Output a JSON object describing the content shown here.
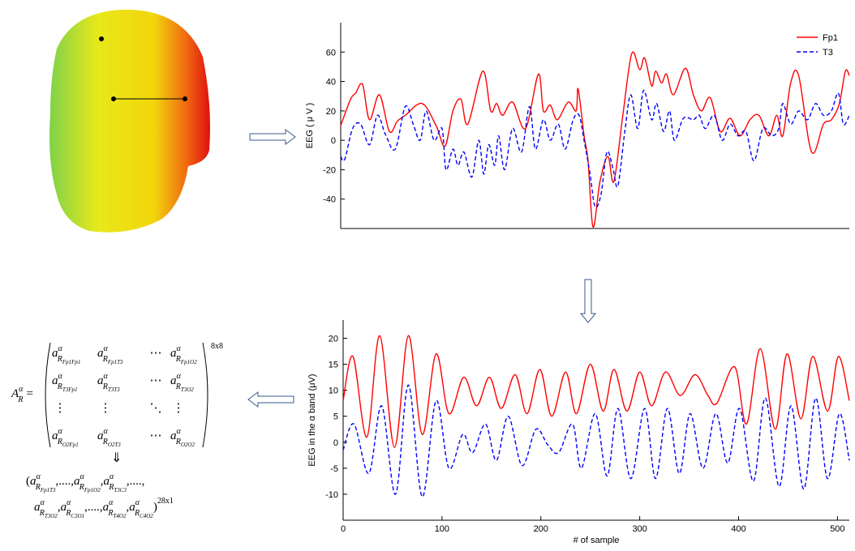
{
  "chart_data": [
    {
      "type": "line",
      "y_label": "EEG ( μ V )",
      "xlim": [
        0,
        512
      ],
      "ylim": [
        -60,
        80
      ],
      "yticks": [
        -40,
        -20,
        0,
        20,
        40,
        60
      ],
      "legend": "upper right",
      "series": [
        {
          "name": "Fp1",
          "color": "#ff0000",
          "style": "solid",
          "x": [
            0,
            10,
            15,
            22,
            29,
            39,
            49,
            57,
            65,
            82,
            96,
            105,
            113,
            121,
            128,
            143,
            151,
            157,
            163,
            173,
            186,
            199,
            204,
            211,
            218,
            229,
            237,
            239,
            245,
            249,
            254,
            261,
            269,
            275,
            284,
            293,
            301,
            306,
            313,
            317,
            323,
            328,
            335,
            347,
            355,
            363,
            372,
            382,
            392,
            402,
            412,
            421,
            431,
            439,
            445,
            453,
            461,
            474,
            486,
            494,
            502,
            508,
            512
          ],
          "values": [
            10,
            28,
            32,
            38,
            14,
            31,
            6,
            13,
            17,
            25,
            10,
            -4,
            20,
            28,
            11,
            47,
            20,
            25,
            17,
            26,
            8,
            45,
            20,
            24,
            14,
            26,
            20,
            35,
            3,
            -14,
            -59,
            -28,
            -11,
            -28,
            17,
            59,
            48,
            56,
            37,
            47,
            39,
            45,
            31,
            49,
            31,
            20,
            29,
            6,
            15,
            3,
            14,
            17,
            3,
            17,
            3,
            39,
            44,
            -8,
            11,
            14,
            25,
            47,
            44
          ]
        },
        {
          "name": "T3",
          "color": "#0000ff",
          "style": "dashed",
          "x": [
            0,
            4,
            12,
            20,
            29,
            37,
            45,
            55,
            65,
            73,
            80,
            86,
            94,
            102,
            106,
            113,
            118,
            124,
            132,
            139,
            144,
            149,
            155,
            159,
            165,
            173,
            182,
            190,
            196,
            204,
            211,
            219,
            226,
            234,
            240,
            245,
            251,
            256,
            262,
            268,
            274,
            279,
            286,
            292,
            299,
            305,
            313,
            318,
            325,
            331,
            336,
            345,
            355,
            361,
            367,
            376,
            384,
            392,
            400,
            408,
            416,
            425,
            434,
            441,
            445,
            453,
            461,
            470,
            478,
            486,
            494,
            501,
            506,
            512
          ],
          "values": [
            -11,
            -13,
            8,
            11,
            -3,
            17,
            4,
            -6,
            23,
            11,
            0,
            20,
            0,
            8,
            -20,
            -6,
            -17,
            -8,
            -25,
            0,
            -23,
            -3,
            -17,
            3,
            -20,
            8,
            -8,
            23,
            -6,
            14,
            0,
            11,
            -6,
            14,
            17,
            0,
            -23,
            -45,
            -37,
            -8,
            -19,
            -31,
            6,
            31,
            8,
            34,
            14,
            25,
            6,
            20,
            0,
            15,
            14,
            17,
            8,
            17,
            0,
            11,
            3,
            6,
            -14,
            8,
            3,
            8,
            25,
            11,
            20,
            14,
            25,
            17,
            20,
            32,
            11,
            17
          ]
        }
      ]
    },
    {
      "type": "line",
      "x_label": "# of sample",
      "y_label": "EEG in the α band (μV)",
      "xlim": [
        0,
        512
      ],
      "ylim": [
        -15,
        23.5
      ],
      "xticks": [
        0,
        100,
        200,
        300,
        400,
        500
      ],
      "yticks": [
        -10,
        -5,
        0,
        5,
        10,
        15,
        20
      ],
      "series": [
        {
          "color": "#ff0000",
          "style": "solid",
          "x": [
            0,
            10,
            24,
            37,
            52,
            66,
            80,
            94,
            107,
            122,
            135,
            148,
            160,
            174,
            186,
            199,
            211,
            225,
            236,
            250,
            263,
            274,
            287,
            300,
            312,
            326,
            341,
            356,
            369,
            378,
            396,
            408,
            422,
            437,
            449,
            463,
            475,
            490,
            501,
            512
          ],
          "values": [
            8,
            16.5,
            1,
            20.5,
            -1,
            20.5,
            1.5,
            17,
            5.5,
            12.5,
            7,
            12.5,
            6.5,
            13,
            5.5,
            14,
            5,
            13.5,
            5.5,
            15,
            6,
            14,
            6,
            13.5,
            7,
            13.5,
            9,
            13,
            9,
            7.5,
            14.5,
            3.5,
            18,
            2.5,
            17,
            4.5,
            16.5,
            6,
            16.5,
            8
          ]
        },
        {
          "color": "#0000ff",
          "style": "dashed",
          "x": [
            0,
            11,
            26,
            39,
            53,
            66,
            80,
            94,
            107,
            121,
            131,
            144,
            155,
            167,
            181,
            195,
            207,
            218,
            232,
            241,
            255,
            267,
            278,
            291,
            305,
            316,
            328,
            340,
            351,
            364,
            377,
            389,
            401,
            415,
            427,
            441,
            453,
            466,
            478,
            490,
            502,
            512
          ],
          "values": [
            -1.5,
            3.5,
            -6,
            7,
            -10,
            11,
            -10.5,
            8,
            -5,
            1.5,
            -2,
            3.5,
            -3.5,
            5,
            -4.5,
            2.5,
            -0.5,
            -2,
            3.5,
            -5,
            5.5,
            -6.5,
            6.5,
            -7,
            6.5,
            -7,
            6.5,
            -6,
            5.5,
            -5,
            5.5,
            -4,
            6.5,
            -7.5,
            8.5,
            -8.5,
            7,
            -9,
            8.5,
            -7,
            5.5,
            -3.5
          ]
        }
      ]
    }
  ],
  "matrix": {
    "term": {
      "base": "a",
      "sup": "α",
      "sub": "R"
    },
    "lhs": {
      "base": "A",
      "sup": "α",
      "sub": "R",
      "eq": "="
    },
    "size": "8x8",
    "rows": [
      [
        {
          "sub": "Fp1Fp1"
        },
        {
          "sub": "Fp1T3"
        },
        {
          "text": "⋯"
        },
        {
          "sub": "Fp1O2"
        }
      ],
      [
        {
          "sub": "T3Fp1"
        },
        {
          "sub": "T3T3"
        },
        {
          "text": "⋯"
        },
        {
          "sub": "T3O2"
        }
      ],
      [
        {
          "text": "⋮"
        },
        {
          "text": "⋮"
        },
        {
          "text": "⋱"
        },
        {
          "text": "⋮"
        }
      ],
      [
        {
          "sub": "O2Fp1"
        },
        {
          "sub": "O2T3"
        },
        {
          "text": "⋯"
        },
        {
          "sub": "O2O2"
        }
      ]
    ],
    "arrow": "⇓",
    "vector": {
      "size": "28x1",
      "lines": [
        [
          {
            "text": "("
          },
          {
            "sub": "Fp1T3"
          },
          {
            "text": ",....,"
          },
          {
            "sub": "Fp1O2"
          },
          {
            "text": ","
          },
          {
            "sub": "T3C3"
          },
          {
            "text": ",....,"
          }
        ],
        [
          {
            "sub": "T3O2"
          },
          {
            "text": ","
          },
          {
            "sub": "C3O1"
          },
          {
            "text": ",....,"
          },
          {
            "sub": "T4O2"
          },
          {
            "text": ","
          },
          {
            "sub": "C4O2"
          },
          {
            "text": ")"
          }
        ]
      ]
    }
  }
}
